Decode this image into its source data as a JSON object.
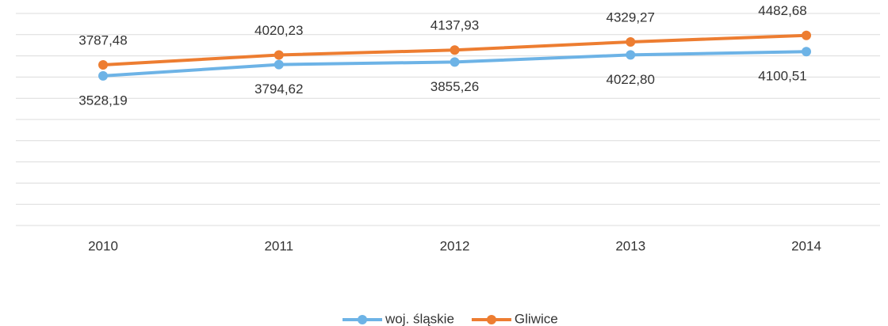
{
  "chart_data": {
    "type": "line",
    "categories": [
      "2010",
      "2011",
      "2012",
      "2013",
      "2014"
    ],
    "series": [
      {
        "name": "woj. śląskie",
        "color": "#6db3e6",
        "values": [
          3528.19,
          3794.62,
          3855.26,
          4022.8,
          4100.51
        ],
        "value_labels": [
          "3528,19",
          "3794,62",
          "3855,26",
          "4022,80",
          "4100,51"
        ]
      },
      {
        "name": "Gliwice",
        "color": "#ed7d31",
        "values": [
          3787.48,
          4020.23,
          4137.93,
          4329.27,
          4482.68
        ],
        "value_labels": [
          "3787,48",
          "4020,23",
          "4137,93",
          "4329,27",
          "4482,68"
        ]
      }
    ],
    "ylim": [
      0,
      5000
    ],
    "grid": true,
    "legend": "bottom"
  }
}
